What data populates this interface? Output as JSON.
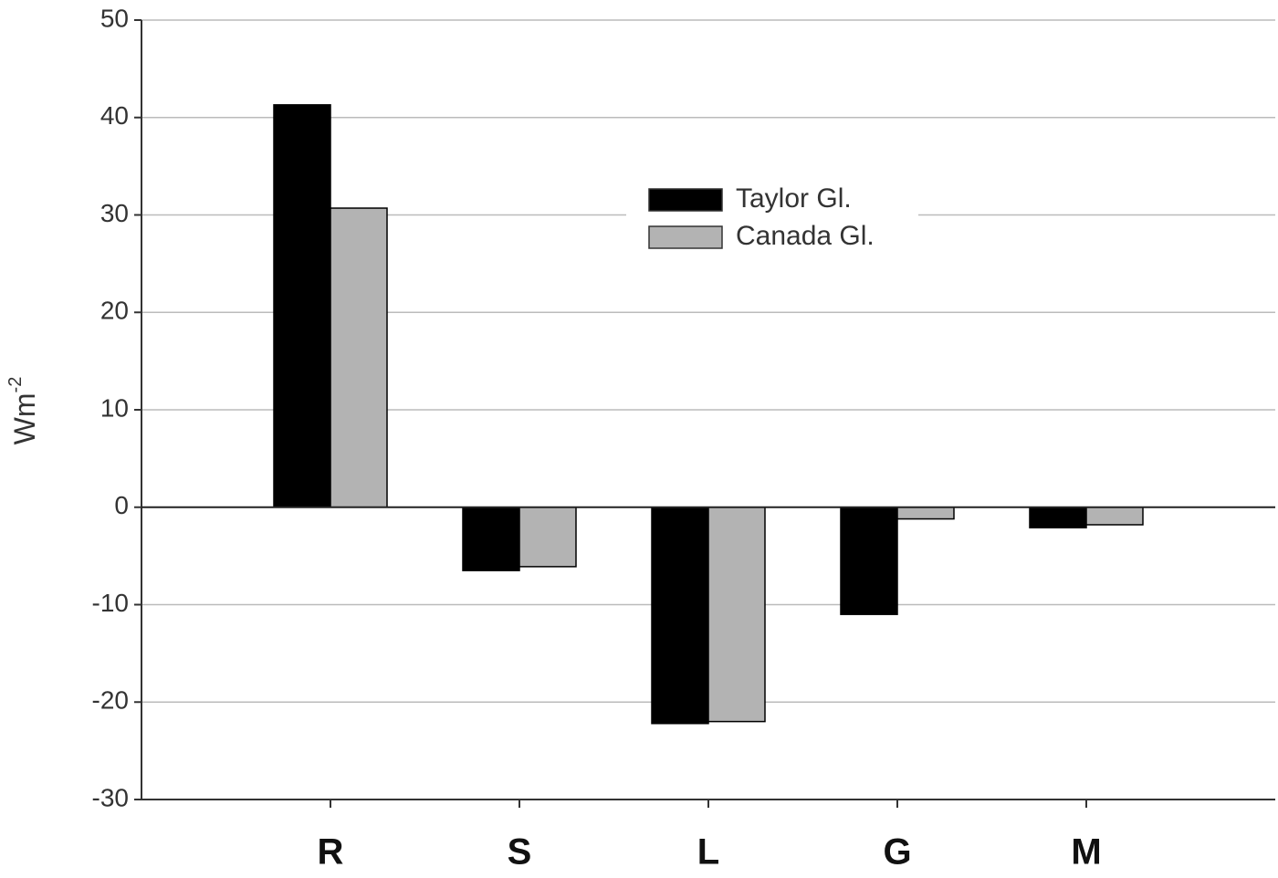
{
  "chart_data": {
    "type": "bar",
    "ylabel": "Wm",
    "ylabel_superscript": "-2",
    "categories": [
      "R",
      "S",
      "L",
      "G",
      "M"
    ],
    "series": [
      {
        "name": "Taylor Gl.",
        "color": "#000000",
        "values": [
          41.3,
          -6.5,
          -22.2,
          -11,
          -2.1
        ]
      },
      {
        "name": "Canada Gl.",
        "color": "#b3b3b3",
        "values": [
          30.7,
          -6.1,
          -22,
          -1.2,
          -1.8
        ]
      }
    ],
    "ylim": [
      -30,
      50
    ],
    "yticks": [
      -30,
      -20,
      -10,
      0,
      10,
      20,
      30,
      40,
      50
    ],
    "grid": true,
    "legend": "upper center"
  }
}
